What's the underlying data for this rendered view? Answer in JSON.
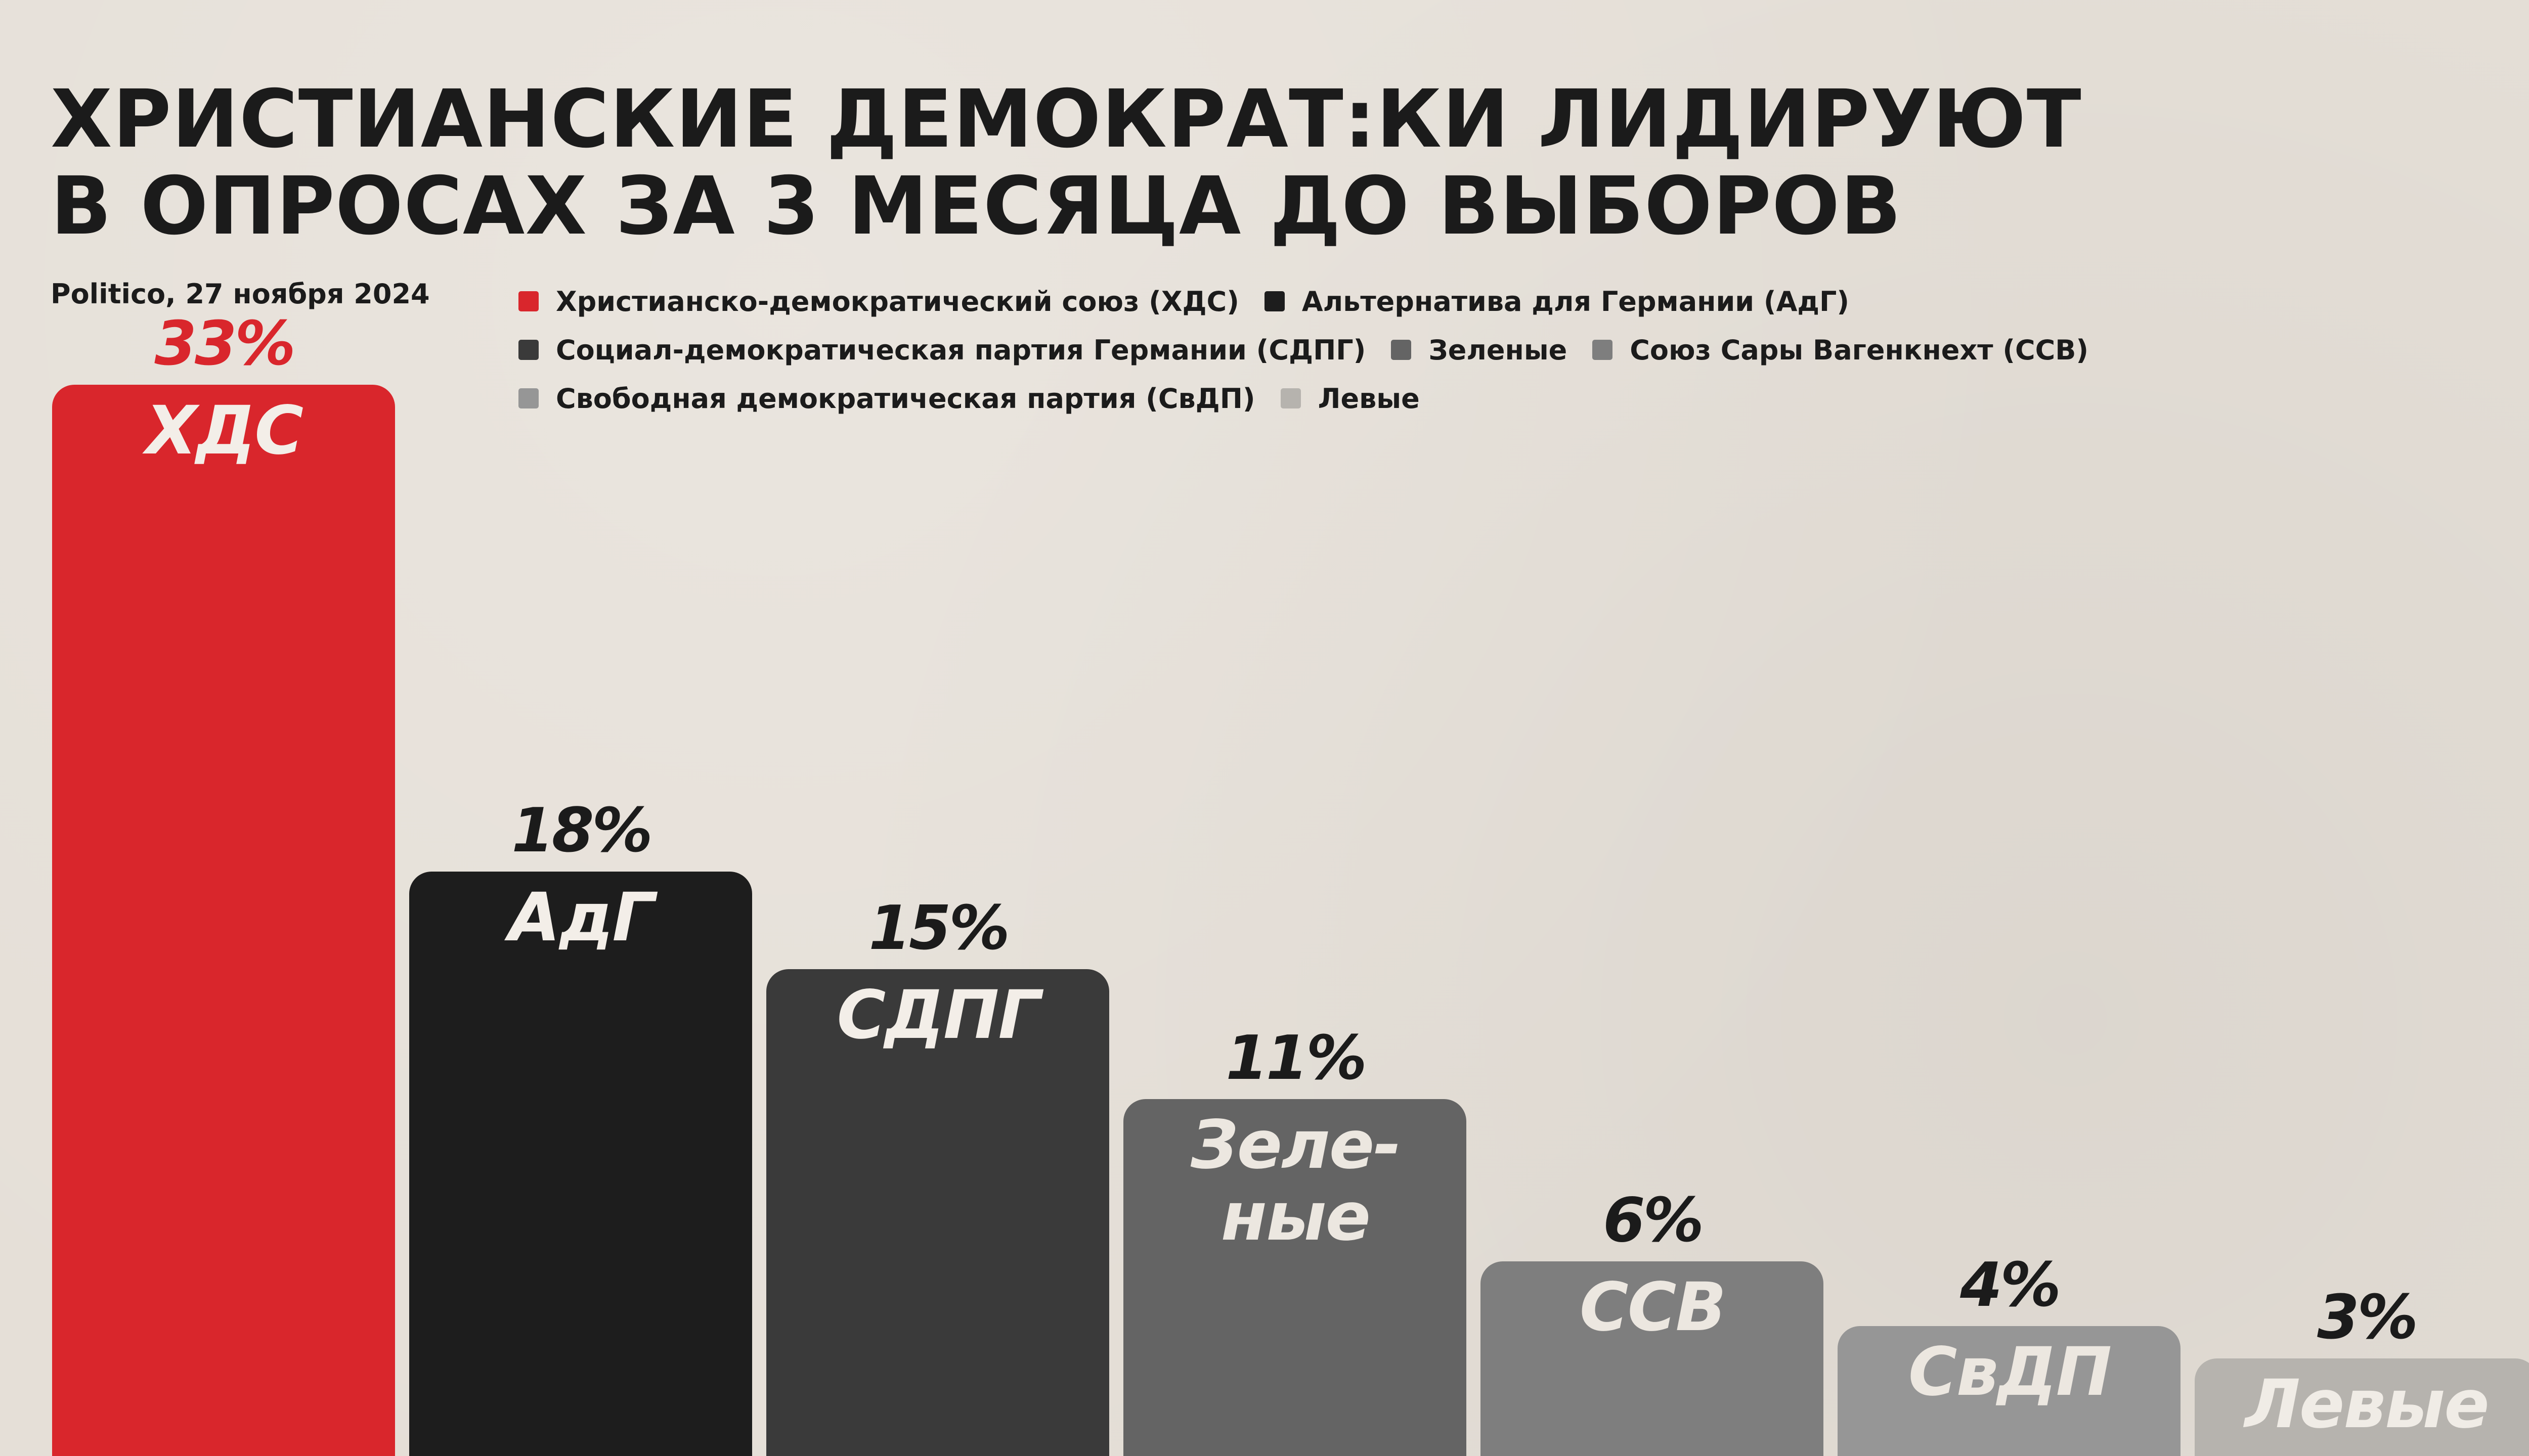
{
  "header": {
    "title_line1": "ХРИСТИАНСКИЕ ДЕМОКРАТ:КИ ЛИДИРУЮТ",
    "title_line2": "В ОПРОСАХ ЗА 3 МЕСЯЦА ДО ВЫБОРОВ",
    "source": "Politico, 27 ноября 2024"
  },
  "legend": [
    {
      "label": "Христианско-демократический союз (ХДС)",
      "color": "#d9262c"
    },
    {
      "label": "Альтернатива для Германии (АдГ)",
      "color": "#1d1d1d"
    },
    {
      "label": "Социал-демократическая партия Германии (СДПГ)",
      "color": "#3a3a3a"
    },
    {
      "label": "Зеленые",
      "color": "#646464"
    },
    {
      "label": "Союз Сары Вагенкнехт (ССВ)",
      "color": "#7e7e7e"
    },
    {
      "label": "Свободная демократическая партия (СвДП)",
      "color": "#969696"
    },
    {
      "label": "Левые",
      "color": "#b6b3ae"
    }
  ],
  "chart_data": {
    "type": "bar",
    "title": "ХРИСТИАНСКИЕ ДЕМОКРАТ:КИ ЛИДИРУЮТ В ОПРОСАХ ЗА 3 МЕСЯЦА ДО ВЫБОРОВ",
    "categories": [
      "ХДС",
      "АдГ",
      "СДПГ",
      "Зеленые",
      "ССВ",
      "СвДП",
      "Левые"
    ],
    "bar_labels": [
      "ХДС",
      "АдГ",
      "СДПГ",
      "Зеле-\nные",
      "ССВ",
      "СвДП",
      "Левые"
    ],
    "values": [
      33,
      18,
      15,
      11,
      6,
      4,
      3
    ],
    "value_labels": [
      "33%",
      "18%",
      "15%",
      "11%",
      "6%",
      "4%",
      "3%"
    ],
    "colors": [
      "#d9262c",
      "#1d1d1d",
      "#3a3a3a",
      "#646464",
      "#7e7e7e",
      "#969696",
      "#b6b3ae"
    ],
    "value_label_colors": [
      "#d9262c",
      "#1b1b1b",
      "#1b1b1b",
      "#1b1b1b",
      "#1b1b1b",
      "#1b1b1b",
      "#1b1b1b"
    ],
    "bar_label_colors": [
      "#f3eee8",
      "#f3eee8",
      "#f3eee8",
      "#ece7e0",
      "#ece7e0",
      "#ece7e0",
      "#f0ece6"
    ],
    "xlabel": "",
    "ylabel": "",
    "grid": false,
    "legend_position": "top"
  }
}
